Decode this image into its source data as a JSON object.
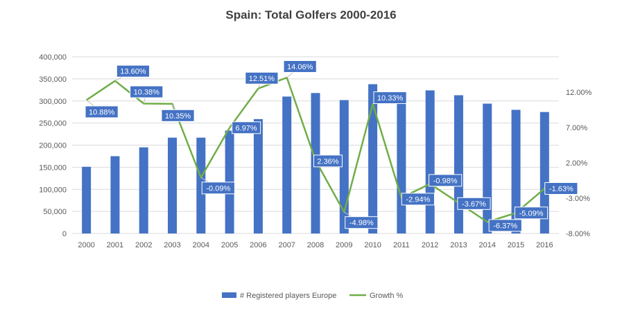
{
  "chart_data": {
    "type": "bar",
    "title": "Spain: Total Golfers 2000-2016",
    "categories": [
      "2000",
      "2001",
      "2002",
      "2003",
      "2004",
      "2005",
      "2006",
      "2007",
      "2008",
      "2009",
      "2010",
      "2011",
      "2012",
      "2013",
      "2014",
      "2015",
      "2016"
    ],
    "y_left": {
      "ylim": [
        0,
        400000
      ],
      "ticks": [
        "0",
        "50,000",
        "100,000",
        "150,000",
        "200,000",
        "250,000",
        "300,000",
        "350,000",
        "400,000"
      ],
      "tick_values": [
        0,
        50000,
        100000,
        150000,
        200000,
        250000,
        300000,
        350000,
        400000
      ]
    },
    "y_right": {
      "ylim": [
        -8,
        17
      ],
      "ticks": [
        "-8.00%",
        "-3.00%",
        "2.00%",
        "7.00%",
        "12.00%"
      ],
      "tick_values": [
        -8,
        -3,
        2,
        7,
        12
      ]
    },
    "series": [
      {
        "name": "# Registered players Europe",
        "type": "bar",
        "axis": "left",
        "color": "#4472C4",
        "values": [
          151000,
          175000,
          195000,
          217000,
          217000,
          233000,
          259000,
          310000,
          318000,
          302000,
          338000,
          304000,
          324000,
          313000,
          294000,
          280000,
          275000
        ]
      },
      {
        "name": "Growth %",
        "type": "line",
        "axis": "right",
        "color": "#70AD47",
        "values": [
          10.88,
          13.6,
          10.38,
          10.35,
          -0.09,
          6.97,
          12.51,
          14.06,
          2.36,
          -4.98,
          10.33,
          -2.94,
          -0.98,
          -3.67,
          -6.37,
          -5.09,
          -1.63
        ],
        "labels": [
          "10.88%",
          "13.60%",
          "10.38%",
          "10.35%",
          "-0.09%",
          "6.97%",
          "12.51%",
          "14.06%",
          "2.36%",
          "-4.98%",
          "10.33%",
          "-2.94%",
          "-0.98%",
          "-3.67%",
          "-6.37%",
          "-5.09%",
          "-1.63%"
        ]
      }
    ],
    "grid": true,
    "legend": "bottom",
    "label_color": "#4472C4"
  }
}
